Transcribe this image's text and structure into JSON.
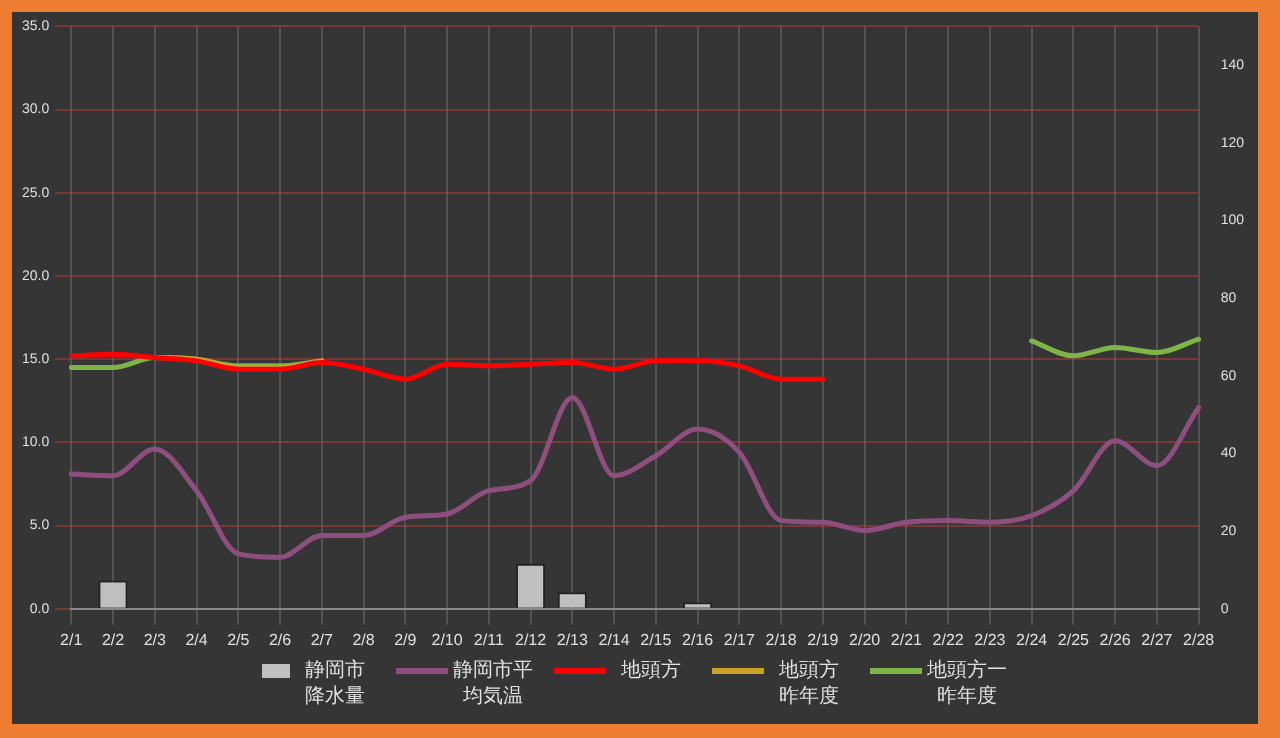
{
  "chart_data": {
    "type": "line",
    "categories": [
      "2/1",
      "2/2",
      "2/3",
      "2/4",
      "2/5",
      "2/6",
      "2/7",
      "2/8",
      "2/9",
      "2/10",
      "2/11",
      "2/12",
      "2/13",
      "2/14",
      "2/15",
      "2/16",
      "2/17",
      "2/18",
      "2/19",
      "2/20",
      "2/21",
      "2/22",
      "2/23",
      "2/24",
      "2/25",
      "2/26",
      "2/27",
      "2/28"
    ],
    "series": [
      {
        "name": "静岡市降水量",
        "type": "bar",
        "color": "#bfbfbf",
        "values": [
          0,
          1.7,
          0,
          0,
          0,
          0,
          0,
          0,
          0,
          0,
          0,
          2.7,
          1,
          0,
          0,
          0.4,
          0,
          0,
          0,
          0,
          0,
          0,
          0,
          0,
          0,
          0,
          0,
          0
        ]
      },
      {
        "name": "静岡市平均気温",
        "color": "#8e4f7e",
        "values": [
          8.1,
          8,
          9.6,
          7.1,
          3.3,
          3.1,
          4.4,
          4.4,
          5.5,
          5.7,
          7.1,
          7.7,
          12.7,
          8,
          9.2,
          10.8,
          9.4,
          5.3,
          5.2,
          4.7,
          5.2,
          5.3,
          5.2,
          5.6,
          7.1,
          10.1,
          8.6,
          12.1
        ]
      },
      {
        "name": "地頭方",
        "color": "#ff0000",
        "values": [
          15.2,
          15.3,
          15.1,
          14.9,
          14.4,
          14.4,
          14.8,
          14.4,
          13.8,
          14.7,
          14.6,
          14.7,
          14.8,
          14.4,
          14.9,
          14.9,
          14.6,
          13.8,
          13.8,
          null,
          null,
          null,
          null,
          null,
          null,
          null,
          null,
          null
        ]
      },
      {
        "name": "地頭方昨年度",
        "color": "#c9a227",
        "values": [
          null,
          null,
          15.1,
          15,
          14.5,
          14.5,
          14.9,
          null,
          null,
          null,
          null,
          null,
          null,
          null,
          null,
          null,
          null,
          null,
          null,
          null,
          null,
          null,
          null,
          null,
          null,
          null,
          null,
          null
        ]
      },
      {
        "name": "地頭方一昨年度",
        "color": "#7fb447",
        "values": [
          14.5,
          14.5,
          15.1,
          15,
          14.6,
          14.6,
          14.9,
          null,
          null,
          null,
          null,
          null,
          null,
          null,
          null,
          null,
          null,
          null,
          null,
          null,
          null,
          null,
          null,
          16.1,
          15.2,
          15.7,
          15.4,
          16.2
        ]
      }
    ],
    "ylim": [
      0,
      35
    ],
    "yticks": [
      {
        "value": 0,
        "label": "0.0"
      },
      {
        "value": 5,
        "label": "5.0"
      },
      {
        "value": 10,
        "label": "10.0"
      },
      {
        "value": 15,
        "label": "15.0"
      },
      {
        "value": 20,
        "label": "20.0"
      },
      {
        "value": 25,
        "label": "25.0"
      },
      {
        "value": 30,
        "label": "30.0"
      },
      {
        "value": 35,
        "label": "35.0"
      }
    ],
    "y2lim": [
      0,
      150
    ],
    "y2ticks": [
      0,
      20,
      40,
      60,
      80,
      100,
      120,
      140
    ],
    "grid": true,
    "legend": "bottom"
  }
}
